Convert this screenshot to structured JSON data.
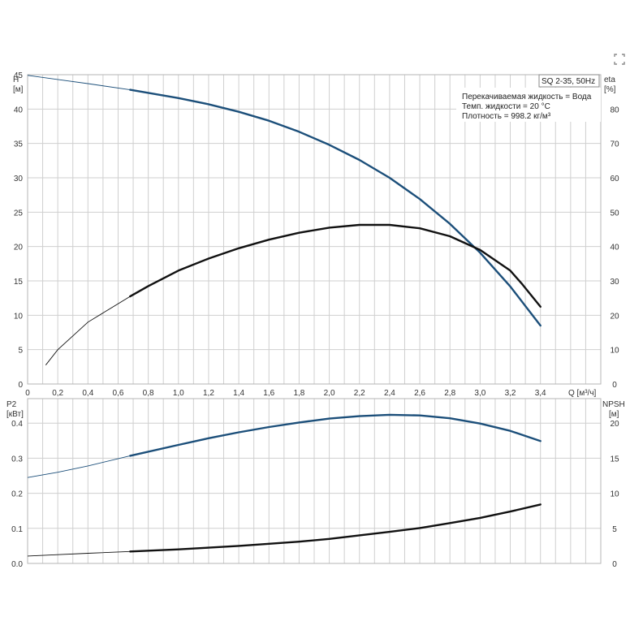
{
  "chart_data": {
    "type": "line",
    "info": {
      "badge": "SQ 2-35, 50Hz",
      "lines": [
        "Перекачиваемая жидкость = Вода",
        "Темп. жидкости = 20 °C",
        "Плотность = 998.2 кг/м³"
      ]
    },
    "x_axis": {
      "label": "Q [м³/ч]",
      "range": [
        0,
        3.8
      ],
      "ticks": [
        "0",
        "0,2",
        "0,4",
        "0,6",
        "0,8",
        "1,0",
        "1,2",
        "1,4",
        "1,6",
        "1,8",
        "2,0",
        "2,2",
        "2,4",
        "2,6",
        "2,8",
        "3,0",
        "3,2",
        "3,4"
      ]
    },
    "top_panel": {
      "left_axis": {
        "label": [
          "H",
          "[м]"
        ],
        "range": [
          0,
          45
        ],
        "ticks": [
          "0",
          "5",
          "10",
          "15",
          "20",
          "25",
          "30",
          "35",
          "40",
          "45"
        ]
      },
      "right_axis": {
        "label": [
          "eta",
          "[%]"
        ],
        "range": [
          0,
          90
        ],
        "ticks": [
          "0",
          "10",
          "20",
          "30",
          "40",
          "50",
          "60",
          "70",
          "80"
        ]
      },
      "series": [
        {
          "axis": "left",
          "color": "#1c4f7a",
          "thin_until": 0.68,
          "x": [
            0,
            0.2,
            0.4,
            0.68,
            1.0,
            1.2,
            1.4,
            1.6,
            1.8,
            2.0,
            2.2,
            2.4,
            2.6,
            2.8,
            3.0,
            3.2,
            3.4
          ],
          "values": [
            44.9,
            44.3,
            43.7,
            42.8,
            41.6,
            40.7,
            39.6,
            38.3,
            36.7,
            34.8,
            32.6,
            30.0,
            26.9,
            23.3,
            19.1,
            14.2,
            8.5
          ]
        },
        {
          "axis": "right",
          "color": "#111111",
          "thin_until": 0.68,
          "x": [
            0.12,
            0.2,
            0.4,
            0.68,
            0.8,
            1.0,
            1.2,
            1.4,
            1.6,
            1.8,
            2.0,
            2.2,
            2.4,
            2.6,
            2.8,
            3.0,
            3.2,
            3.28,
            3.4
          ],
          "values": [
            5.5,
            10,
            18,
            25.5,
            28.5,
            33,
            36.5,
            39.5,
            42,
            44,
            45.5,
            46.3,
            46.3,
            45.3,
            43,
            39,
            33,
            29,
            22.5
          ]
        }
      ]
    },
    "bottom_panel": {
      "left_axis": {
        "label": [
          "P2",
          "[кВт]"
        ],
        "range": [
          0,
          0.47
        ],
        "ticks": [
          "0.0",
          "0.1",
          "0.2",
          "0.3",
          "0.4"
        ]
      },
      "right_axis": {
        "label": [
          "NPSH",
          "[м]"
        ],
        "range": [
          0,
          23.5
        ],
        "ticks": [
          "0",
          "5",
          "10",
          "15",
          "20"
        ]
      },
      "series": [
        {
          "axis": "left",
          "color": "#1c4f7a",
          "thin_until": 0.68,
          "x": [
            0,
            0.2,
            0.4,
            0.68,
            1.0,
            1.2,
            1.4,
            1.6,
            1.8,
            2.0,
            2.2,
            2.4,
            2.6,
            2.8,
            3.0,
            3.2,
            3.4
          ],
          "values": [
            0.245,
            0.26,
            0.278,
            0.307,
            0.338,
            0.357,
            0.374,
            0.389,
            0.402,
            0.413,
            0.42,
            0.424,
            0.422,
            0.414,
            0.399,
            0.378,
            0.349
          ]
        },
        {
          "axis": "left",
          "color": "#111111",
          "thin_until": 0.68,
          "x": [
            0,
            0.2,
            0.4,
            0.68,
            1.0,
            1.2,
            1.4,
            1.6,
            1.8,
            2.0,
            2.2,
            2.4,
            2.6,
            2.8,
            3.0,
            3.2,
            3.4
          ],
          "values": [
            0.021,
            0.025,
            0.029,
            0.034,
            0.04,
            0.045,
            0.05,
            0.056,
            0.062,
            0.07,
            0.08,
            0.09,
            0.101,
            0.115,
            0.13,
            0.148,
            0.168
          ]
        }
      ]
    }
  }
}
